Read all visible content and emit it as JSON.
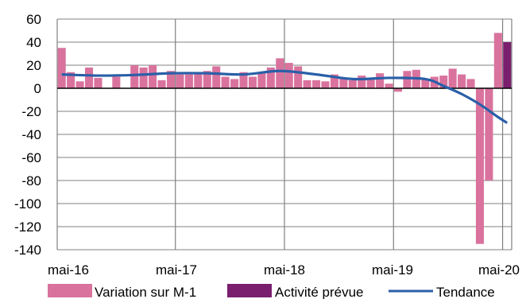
{
  "chart_data": {
    "type": "bar",
    "title": "",
    "xlabel": "",
    "ylabel": "",
    "ylim": [
      -140,
      60
    ],
    "yticks": [
      60,
      40,
      20,
      0,
      -20,
      -40,
      -60,
      -80,
      -100,
      -120,
      -140
    ],
    "ytick_labels": [
      "60",
      "40",
      "20",
      "0",
      "-20",
      "-40",
      "-60",
      "-80",
      "-100",
      "-120",
      "-140"
    ],
    "xtick_labels": [
      "mai-16",
      "mai-17",
      "mai-18",
      "mai-19",
      "mai-20"
    ],
    "grid": true,
    "legend_position": "bottom",
    "colors": {
      "variation": "#d9739e",
      "prevue": "#7a1e6e",
      "tendance": "#2a5fa8",
      "grid": "#808080"
    },
    "series": [
      {
        "name": "Variation sur M-1",
        "kind": "bar",
        "values": [
          35,
          14,
          6,
          18,
          9,
          0,
          10,
          0,
          20,
          18,
          20,
          7,
          15,
          12,
          12,
          14,
          15,
          19,
          10,
          8,
          14,
          10,
          14,
          18,
          26,
          22,
          19,
          7,
          7,
          6,
          12,
          9,
          7,
          11,
          9,
          13,
          4,
          -3,
          15,
          16,
          8,
          10,
          11,
          17,
          12,
          8,
          -135,
          -80,
          48
        ]
      },
      {
        "name": "Activité prévue",
        "kind": "bar",
        "values": [
          null,
          null,
          null,
          null,
          null,
          null,
          null,
          null,
          null,
          null,
          null,
          null,
          null,
          null,
          null,
          null,
          null,
          null,
          null,
          null,
          null,
          null,
          null,
          null,
          null,
          null,
          null,
          null,
          null,
          null,
          null,
          null,
          null,
          null,
          null,
          null,
          null,
          null,
          null,
          null,
          null,
          null,
          null,
          null,
          null,
          null,
          null,
          null,
          null,
          40
        ]
      },
      {
        "name": "Tendance",
        "kind": "line",
        "points": [
          [
            0,
            12
          ],
          [
            4,
            11
          ],
          [
            8,
            11.5
          ],
          [
            12,
            13
          ],
          [
            16,
            13
          ],
          [
            20,
            12
          ],
          [
            24,
            15
          ],
          [
            28,
            12
          ],
          [
            32,
            8
          ],
          [
            36,
            9
          ],
          [
            40,
            8
          ],
          [
            42,
            2
          ],
          [
            44,
            -5
          ],
          [
            46,
            -14
          ],
          [
            48,
            -25
          ],
          [
            49,
            -30
          ]
        ]
      }
    ]
  }
}
